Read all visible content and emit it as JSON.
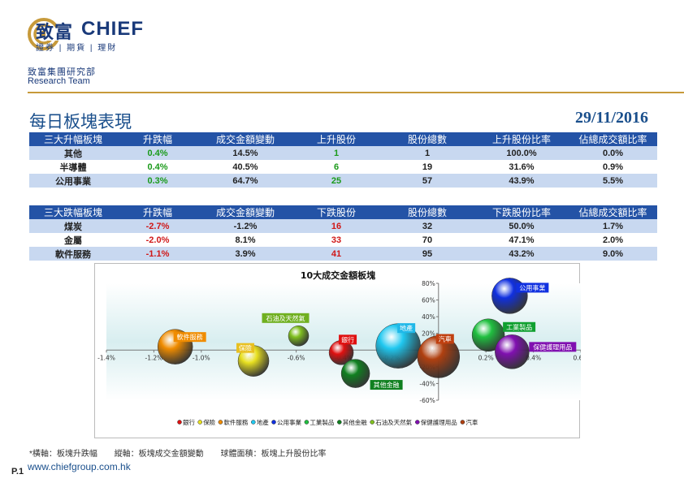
{
  "brand": {
    "name_cn": "致富",
    "name_en": "CHIEF",
    "subtitle": "證券 | 期貨 | 理財",
    "dept_cn": "致富集團研究部",
    "dept_en": "Research Team"
  },
  "page": {
    "title": "每日板塊表現",
    "date": "29/11/2016",
    "page_no": "P.1",
    "website": "www.chiefgroup.com.hk"
  },
  "top_table": {
    "headers": [
      "三大升幅板塊",
      "升跌幅",
      "成交金額變動",
      "上升股份",
      "股份總數",
      "上升股份比率",
      "佔總成交額比率"
    ],
    "rows": [
      [
        "其他",
        "0.4%",
        "14.5%",
        "1",
        "1",
        "100.0%",
        "0.0%"
      ],
      [
        "半導體",
        "0.4%",
        "40.5%",
        "6",
        "19",
        "31.6%",
        "0.9%"
      ],
      [
        "公用事業",
        "0.3%",
        "64.7%",
        "25",
        "57",
        "43.9%",
        "5.5%"
      ]
    ]
  },
  "bottom_table": {
    "headers": [
      "三大跌幅板塊",
      "升跌幅",
      "成交金額變動",
      "下跌股份",
      "股份總數",
      "下跌股份比率",
      "佔總成交額比率"
    ],
    "rows": [
      [
        "煤炭",
        "-2.7%",
        "-1.2%",
        "16",
        "32",
        "50.0%",
        "1.7%"
      ],
      [
        "金屬",
        "-2.0%",
        "8.1%",
        "33",
        "70",
        "47.1%",
        "2.0%"
      ],
      [
        "軟件服務",
        "-1.1%",
        "3.9%",
        "41",
        "95",
        "43.2%",
        "9.0%"
      ]
    ]
  },
  "chart_data": {
    "type": "scatter",
    "title": "10大成交金額板塊",
    "xlabel": "板塊升跌幅",
    "ylabel": "板塊成交金額變動",
    "xlim": [
      -1.4,
      0.6
    ],
    "ylim": [
      -60,
      80
    ],
    "x_ticks": [
      "-1.4%",
      "-1.2%",
      "-1.0%",
      "-0.8%",
      "-0.6%",
      "-0.4%",
      "-0.2%",
      "0.0%",
      "0.2%",
      "0.4%",
      "0.6%"
    ],
    "y_ticks": [
      "80%",
      "60%",
      "40%",
      "20%",
      "0%",
      "-20%",
      "-40%",
      "-60%"
    ],
    "series": [
      {
        "name": "銀行",
        "x": -0.41,
        "y": -3,
        "size": 30,
        "color": "#e01010"
      },
      {
        "name": "保險",
        "x": -0.78,
        "y": -13,
        "size": 38,
        "color": "#e8e020"
      },
      {
        "name": "軟件服務",
        "x": -1.11,
        "y": 4,
        "size": 43,
        "color": "#f08c00"
      },
      {
        "name": "地產",
        "x": -0.17,
        "y": 5,
        "size": 55,
        "color": "#20c8f0"
      },
      {
        "name": "公用事業",
        "x": 0.3,
        "y": 65,
        "size": 44,
        "color": "#1030e0"
      },
      {
        "name": "工業製品",
        "x": 0.21,
        "y": 18,
        "size": 40,
        "color": "#20c040"
      },
      {
        "name": "其他金融",
        "x": -0.35,
        "y": -28,
        "size": 35,
        "color": "#108020"
      },
      {
        "name": "石油及天然氣",
        "x": -0.59,
        "y": 17,
        "size": 25,
        "color": "#80c020"
      },
      {
        "name": "保健護理用品",
        "x": 0.31,
        "y": -2,
        "size": 42,
        "color": "#8010b0"
      },
      {
        "name": "汽車",
        "x": 0.0,
        "y": -8,
        "size": 52,
        "color": "#b04010"
      }
    ],
    "label_colors": {
      "銀行": "#e01010",
      "保險": "#e8c020",
      "軟件服務": "#f08c00",
      "地產": "#20b8e8",
      "公用事業": "#1030e0",
      "工業製品": "#10a030",
      "其他金融": "#108020",
      "石油及天然氣": "#70b020",
      "保健護理用品": "#8010b0",
      "汽車": "#c04010"
    },
    "legend_position": "bottom"
  },
  "footnote": {
    "x_axis": "*橫軸：板塊升跌幅",
    "y_axis": "縱軸：板塊成交金額變動",
    "bubble": "球體面積：板塊上升股份比率"
  }
}
